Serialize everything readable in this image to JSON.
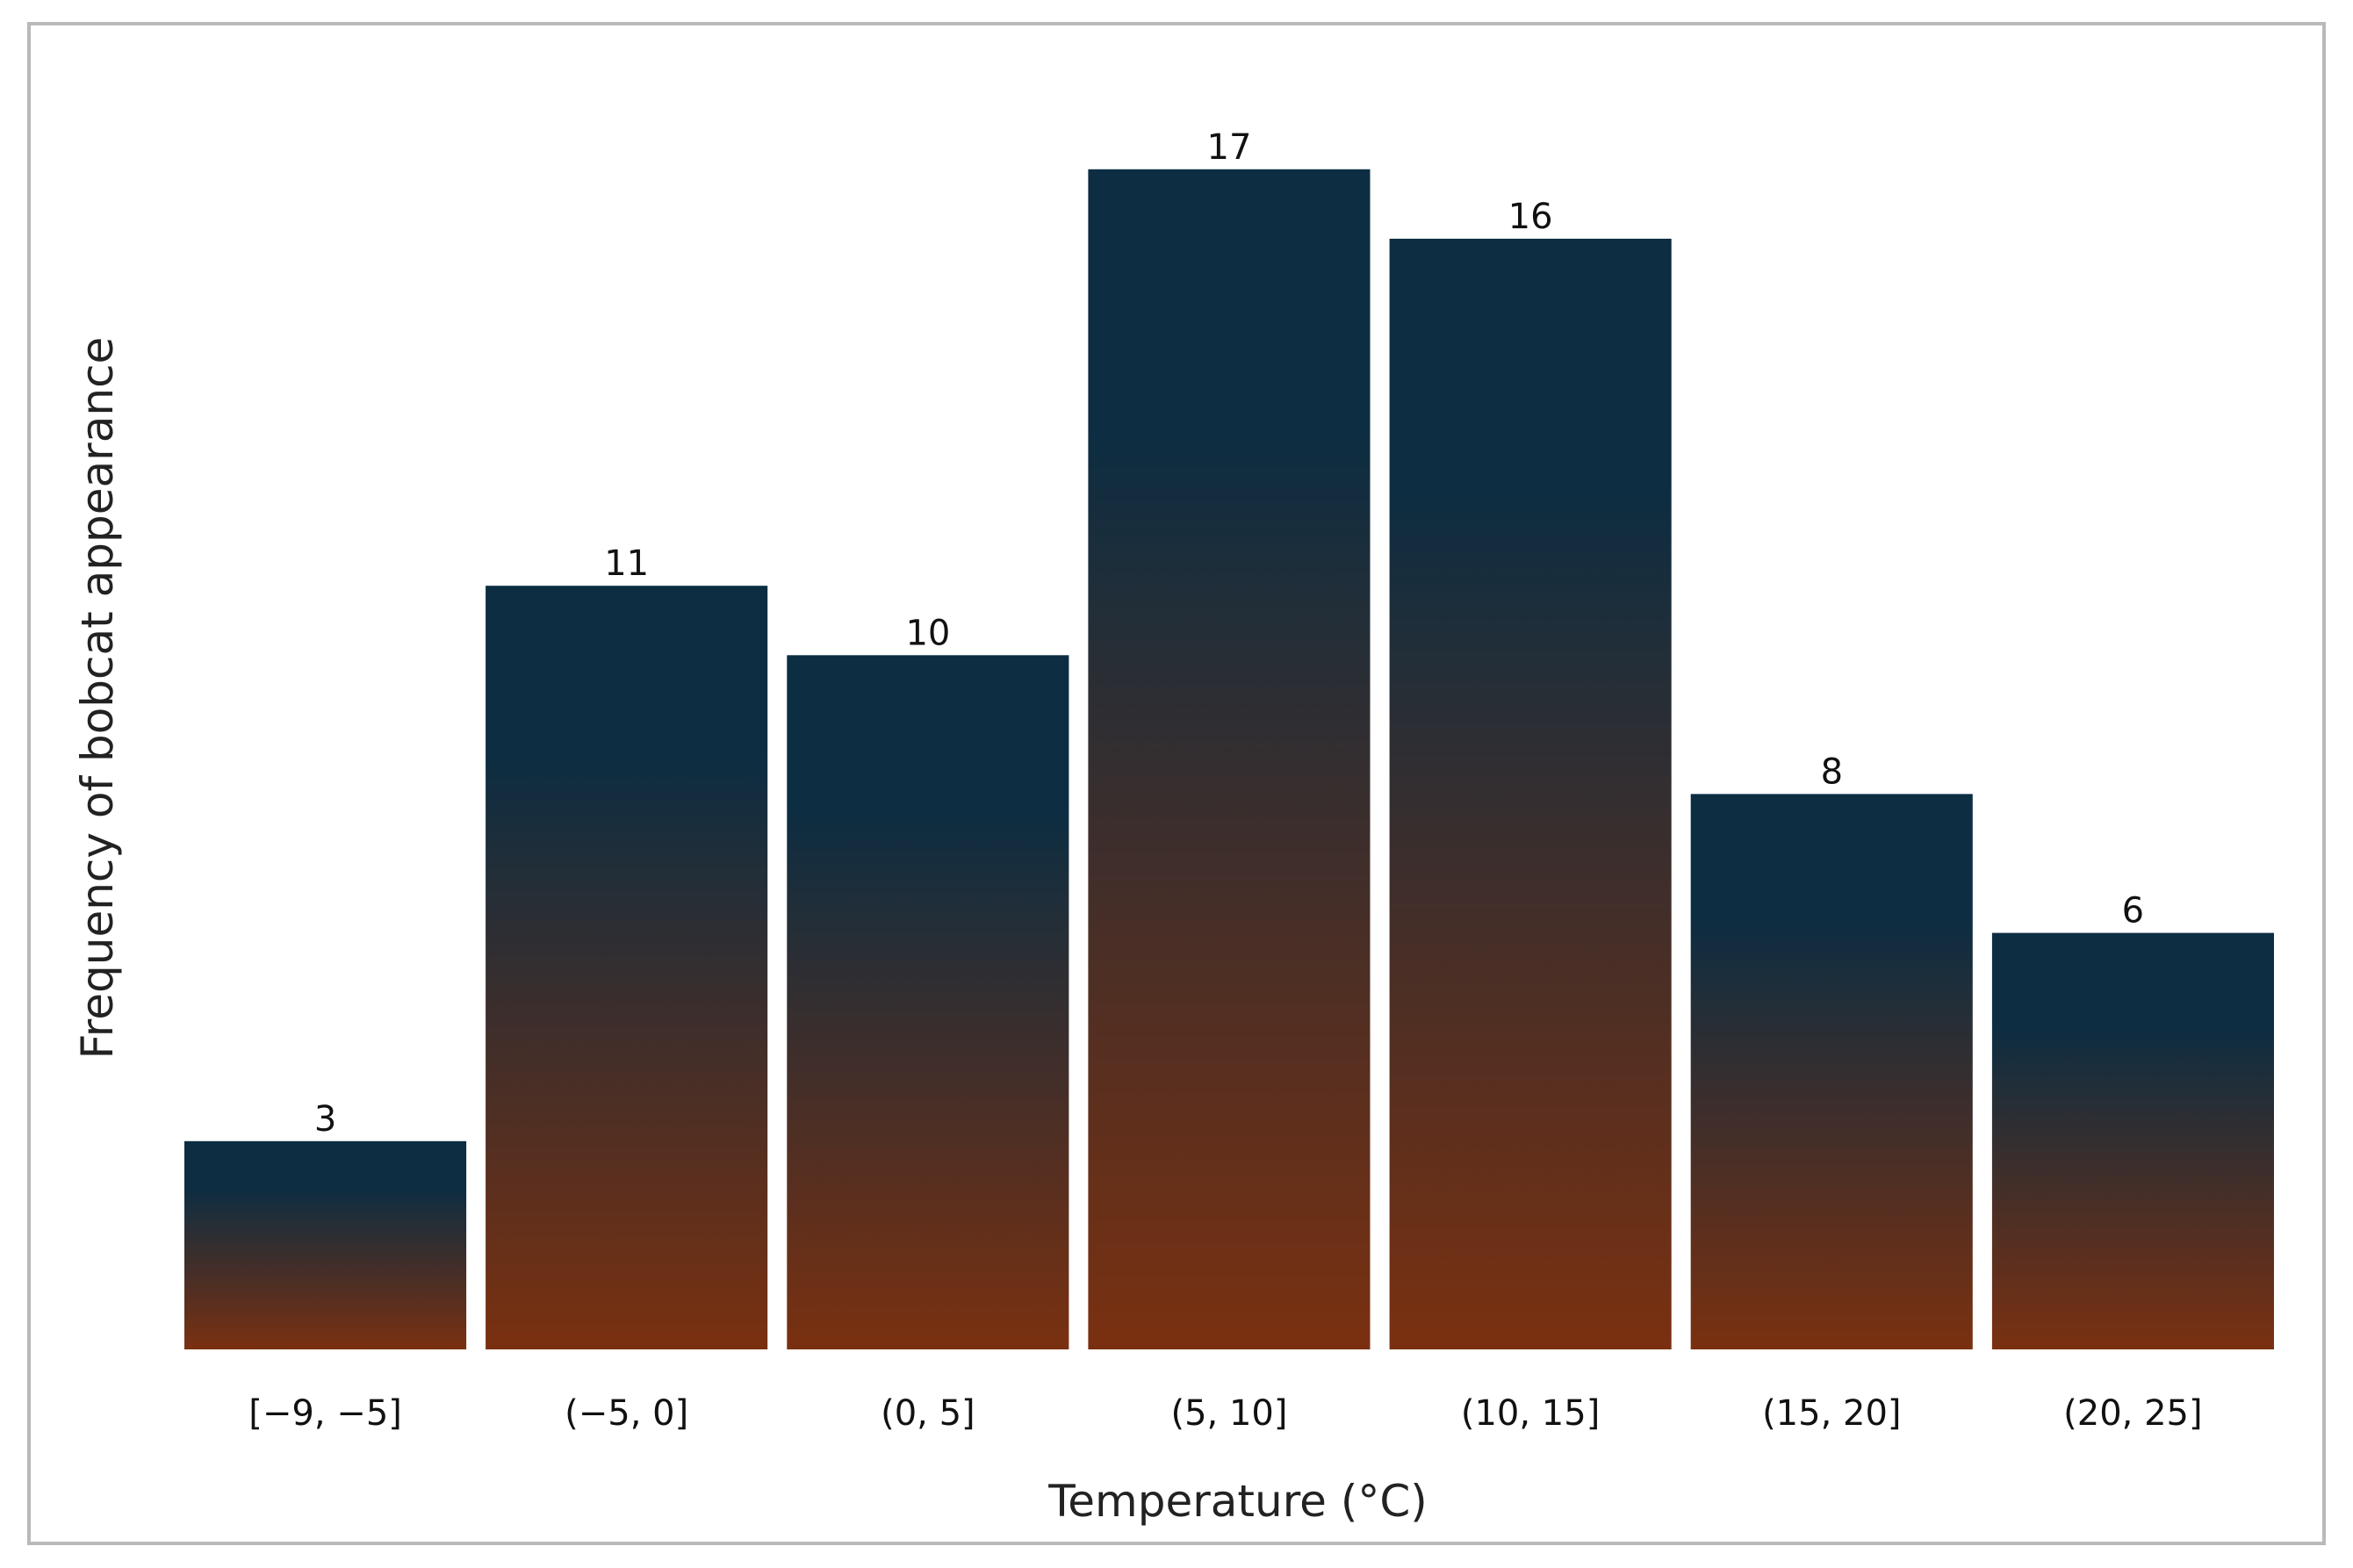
{
  "chart_data": {
    "type": "bar",
    "title": "",
    "xlabel": "Temperature (°C)",
    "ylabel": "Frequency of bobcat appearance",
    "categories": [
      "[−9, −5]",
      "(−5, 0]",
      "(0, 5]",
      "(5, 10]",
      "(10, 15]",
      "(15, 20]",
      "(20, 25]"
    ],
    "values": [
      3,
      11,
      10,
      17,
      16,
      8,
      6
    ],
    "ylim": [
      0,
      18.3
    ],
    "grid": false,
    "legend": "none",
    "bar_gradient": {
      "top": "#0c2d42",
      "bottom": "#7a3010"
    }
  }
}
